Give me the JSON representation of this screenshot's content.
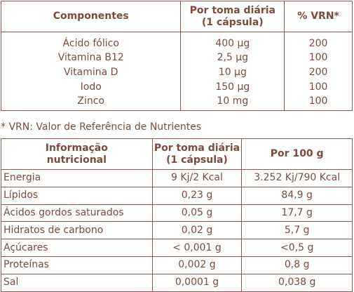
{
  "table1": {
    "headers": [
      "Componentes",
      "Por toma diária\n(1 cápsula)",
      "% VRN*"
    ],
    "header_line1": [
      "Componentes",
      "Por toma diária",
      "% VRN*"
    ],
    "header_line2": [
      "",
      "(1 cápsula)",
      ""
    ],
    "rows": [
      [
        "Ácido fólico",
        "400 µg",
        "200"
      ],
      [
        "Vitamina B12",
        "2,5 µg",
        "100"
      ],
      [
        "Vitamina D",
        "10 µg",
        "200"
      ],
      [
        "Iodo",
        "150 µg",
        "100"
      ],
      [
        "Zinco",
        "10 mg",
        "100"
      ]
    ]
  },
  "footnote": "* VRN: Valor de Referência de Nutrientes",
  "table2": {
    "header_line1": [
      "Informação",
      "Por toma diária",
      "Por 100 g"
    ],
    "header_line2": [
      "nutricional",
      "(1 cápsula)",
      ""
    ],
    "rows": [
      [
        "Energia",
        "9 Kj/2 Kcal",
        "3.252 Kj/790 Kcal"
      ],
      [
        "Lípidos",
        "0,23 g",
        "84,9 g"
      ],
      [
        "Ácidos gordos saturados",
        "0,05 g",
        "17,7 g"
      ],
      [
        "Hidratos de carbono",
        "0,02 g",
        "5,7 g"
      ],
      [
        "Açúcares",
        "< 0,001 g",
        "<0,5 g"
      ],
      [
        "Proteínas",
        "0,002 g",
        "0,8 g"
      ],
      [
        "Sal",
        "0,0001 g",
        "0,038 g"
      ]
    ]
  }
}
